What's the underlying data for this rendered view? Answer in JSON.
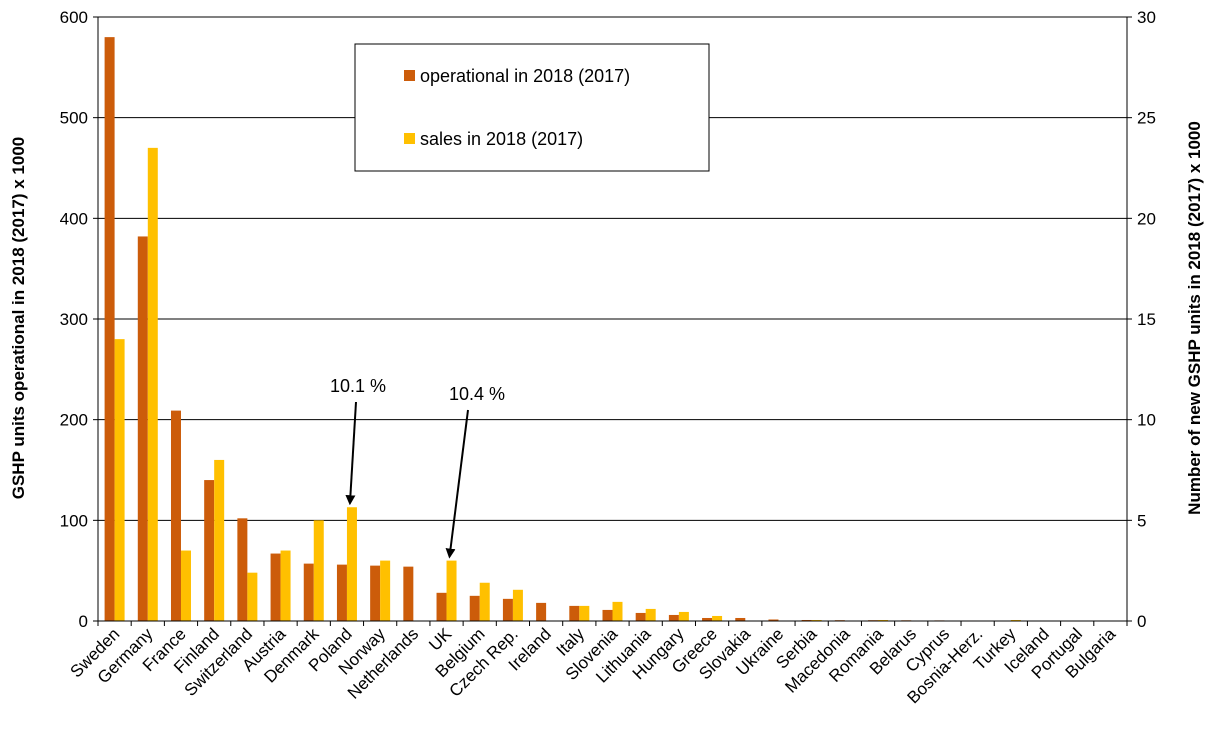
{
  "chart_data": {
    "type": "bar",
    "categories": [
      "Sweden",
      "Germany",
      "France",
      "Finland",
      "Switzerland",
      "Austria",
      "Denmark",
      "Poland",
      "Norway",
      "Netherlands",
      "UK",
      "Belgium",
      "Czech Rep.",
      "Ireland",
      "Italy",
      "Slovenia",
      "Lithuania",
      "Hungary",
      "Greece",
      "Slovakia",
      "Ukraine",
      "Serbia",
      "Macedonia",
      "Romania",
      "Belarus",
      "Cyprus",
      "Bosnia-Herz.",
      "Turkey",
      "Iceland",
      "Portugal",
      "Bulgaria"
    ],
    "series": [
      {
        "name": "operational in 2018 (2017)",
        "axis": "left",
        "color": "#cc5c0a",
        "values": [
          580,
          382,
          209,
          140,
          102,
          67,
          57,
          56,
          55,
          54,
          28,
          25,
          22,
          18,
          15,
          11,
          8,
          6,
          3,
          3,
          1.5,
          1,
          0.8,
          0.8,
          0.7,
          0.6,
          0.5,
          0.4,
          0.4,
          0.3,
          0.3
        ]
      },
      {
        "name": "sales in 2018 (2017)",
        "axis": "right",
        "color": "#ffc000",
        "values": [
          14,
          23.5,
          3.5,
          8,
          2.4,
          3.5,
          5,
          5.65,
          3,
          0,
          3,
          1.9,
          1.55,
          0,
          0.75,
          0.95,
          0.6,
          0.45,
          0.25,
          0,
          0,
          0.05,
          0.02,
          0.05,
          0.02,
          0.02,
          0.02,
          0.05,
          0.02,
          0.02,
          0.02
        ]
      }
    ],
    "title": "",
    "ylabel": "GSHP units operational in 2018 (2017) x 1000",
    "y2label": "Number of new GSHP units in 2018 (2017) x 1000",
    "ylim": [
      0,
      600
    ],
    "y2lim": [
      0,
      30
    ],
    "yticks": [
      0,
      100,
      200,
      300,
      400,
      500,
      600
    ],
    "y2ticks": [
      0,
      5,
      10,
      15,
      20,
      25,
      30
    ],
    "grid": true,
    "legend_position": "top-center",
    "annotations": [
      {
        "text": "10.1 %",
        "category": "Poland",
        "series_value": 5.65
      },
      {
        "text": "10.4 %",
        "category": "UK",
        "series_value": 3
      }
    ]
  }
}
